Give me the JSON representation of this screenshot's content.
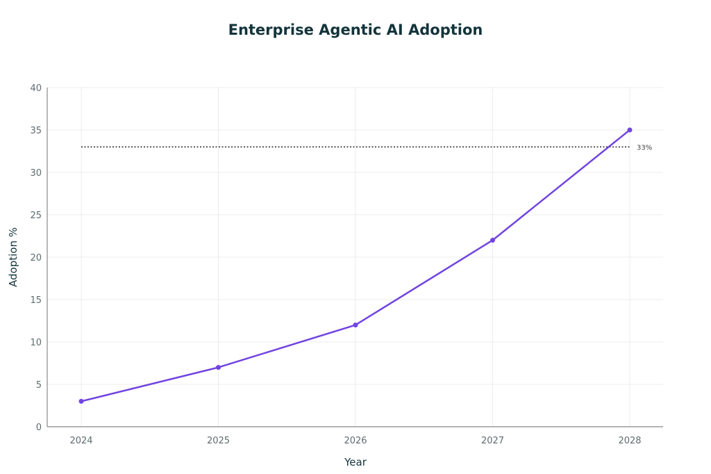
{
  "chart_data": {
    "type": "line",
    "title": "Enterprise Agentic AI Adoption",
    "xlabel": "Year",
    "ylabel": "Adoption %",
    "categories": [
      "2024",
      "2025",
      "2026",
      "2027",
      "2028"
    ],
    "series": [
      {
        "values": [
          3,
          7,
          12,
          22,
          35
        ],
        "color": "#7144e0"
      }
    ],
    "ylim": [
      0,
      40
    ],
    "yticks": [
      "0",
      "5",
      "10",
      "15",
      "20",
      "25",
      "30",
      "35",
      "40"
    ],
    "grid": true,
    "reference_line": {
      "value": 33,
      "label": "33%",
      "style": "dotted",
      "color": "#222222"
    }
  }
}
